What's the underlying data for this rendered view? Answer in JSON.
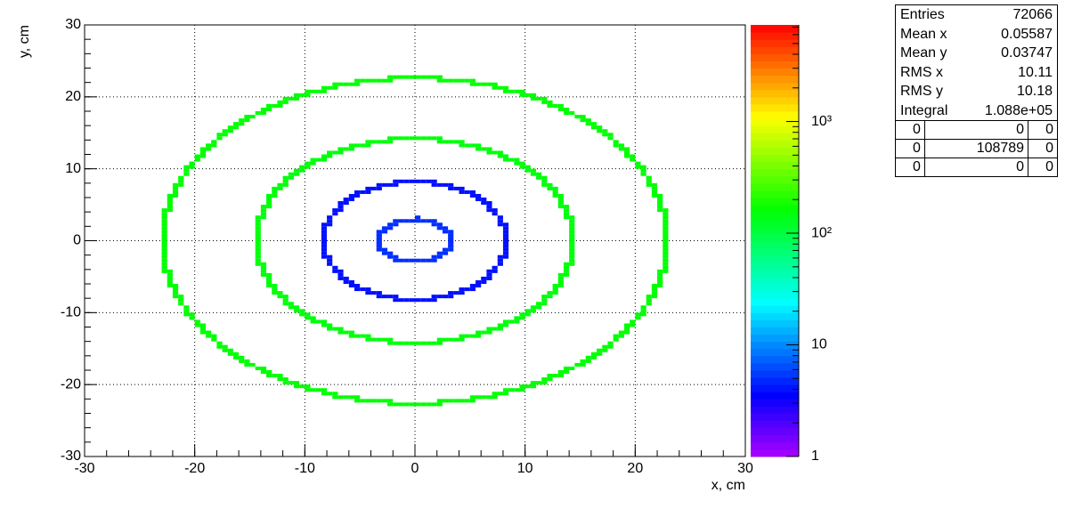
{
  "chart_data": {
    "type": "hist2d",
    "x_label": "x, cm",
    "y_label": "y, cm",
    "xlim": [
      -30,
      30
    ],
    "ylim": [
      -30,
      30
    ],
    "xticks": [
      -30,
      -20,
      -10,
      0,
      10,
      20,
      30
    ],
    "yticks": [
      -30,
      -20,
      -10,
      0,
      10,
      20,
      30
    ],
    "grid": true,
    "bin_width": 0.5,
    "rings": [
      {
        "rx": 3.3,
        "ry": 3.0,
        "value": 5
      },
      {
        "rx": 8.3,
        "ry": 8.2,
        "value": 4
      },
      {
        "rx": 14.4,
        "ry": 14.2,
        "value": 150
      },
      {
        "rx": 22.9,
        "ry": 22.6,
        "value": 160
      }
    ],
    "zlim": [
      1,
      7330
    ],
    "zlog": true,
    "zticks": [
      1,
      10,
      {
        "value": 100,
        "label": "10²"
      },
      {
        "value": 1000,
        "label": "10³"
      }
    ],
    "stats": {
      "rows": [
        [
          "Entries",
          "72066"
        ],
        [
          "Mean x",
          "0.05587"
        ],
        [
          "Mean y",
          "0.03747"
        ],
        [
          "RMS x",
          "10.11"
        ],
        [
          "RMS y",
          "10.18"
        ],
        [
          "Integral",
          "1.088e+05"
        ]
      ],
      "cells": [
        [
          "0",
          "0",
          "0"
        ],
        [
          "0",
          "108789",
          "0"
        ],
        [
          "0",
          "0",
          "0"
        ]
      ]
    }
  }
}
